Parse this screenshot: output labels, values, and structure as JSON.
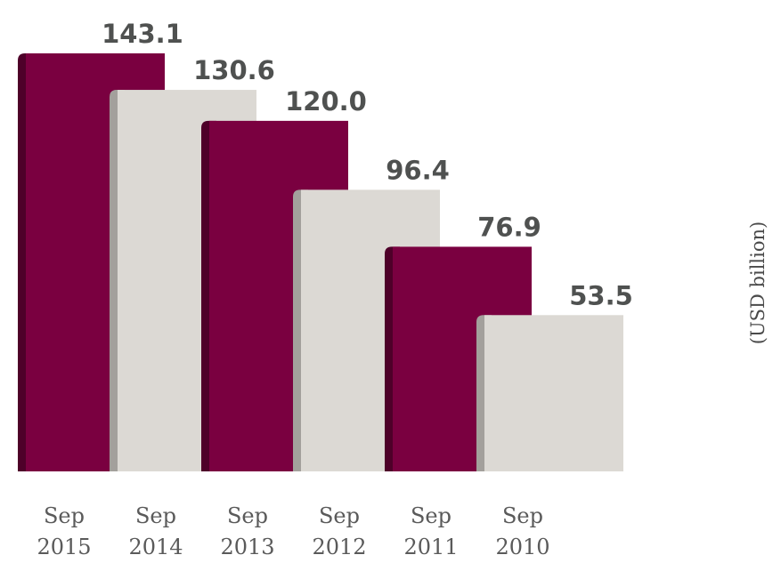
{
  "chart_data": {
    "type": "bar",
    "categories": [
      "Sep 2015",
      "Sep 2014",
      "Sep 2013",
      "Sep 2012",
      "Sep 2011",
      "Sep 2010"
    ],
    "category_lines": [
      [
        "Sep",
        "2015"
      ],
      [
        "Sep",
        "2014"
      ],
      [
        "Sep",
        "2013"
      ],
      [
        "Sep",
        "2012"
      ],
      [
        "Sep",
        "2011"
      ],
      [
        "Sep",
        "2010"
      ]
    ],
    "values": [
      143.1,
      130.6,
      120.0,
      96.4,
      76.9,
      53.5
    ],
    "value_labels": [
      "143.1",
      "130.6",
      "120.0",
      "96.4",
      "76.9",
      "53.5"
    ],
    "unit_label": "(USD billion)",
    "title": "",
    "xlabel": "",
    "ylabel": "(USD billion)",
    "ylim": [
      0,
      143.1
    ],
    "grid": false,
    "bar_colors": [
      "#7a0040",
      "#dcd9d4",
      "#7a0040",
      "#dcd9d4",
      "#7a0040",
      "#dcd9d4"
    ],
    "bar_edge_colors": [
      "#4e0029",
      "#a3a09c",
      "#4e0029",
      "#a3a09c",
      "#4e0029",
      "#a3a09c"
    ]
  }
}
